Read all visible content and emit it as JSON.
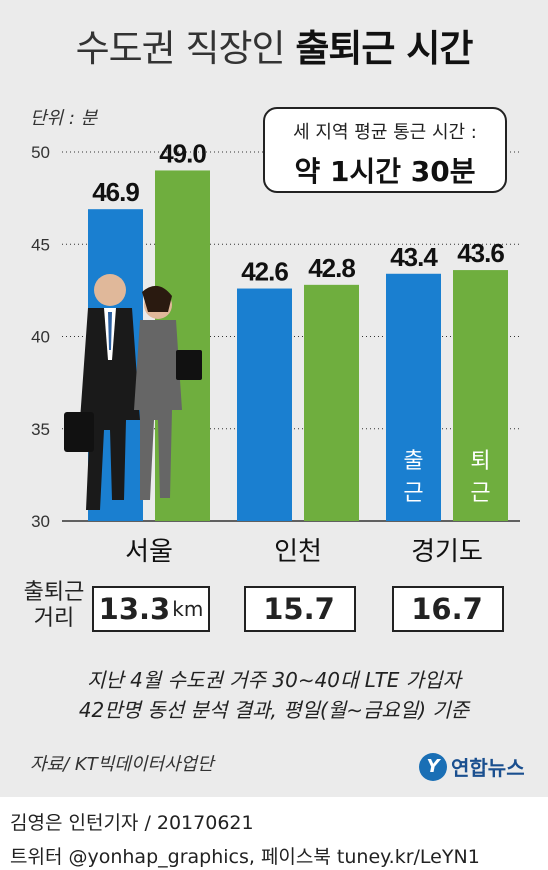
{
  "title": {
    "part1": "수도권 직장인",
    "part2": "출퇴근 시간"
  },
  "unit_label": "단위 : 분",
  "callout": {
    "line1": "세 지역 평균 통근 시간 :",
    "line2": "약 1시간 30분"
  },
  "colors": {
    "commute_in": "#1a7fd0",
    "commute_out": "#6fae3e",
    "panel": "#ebebeb"
  },
  "chart_data": {
    "type": "bar",
    "categories": [
      "서울",
      "인천",
      "경기도"
    ],
    "series": [
      {
        "name": "출근",
        "values": [
          46.9,
          42.6,
          43.4
        ]
      },
      {
        "name": "퇴근",
        "values": [
          49.0,
          42.8,
          43.6
        ]
      }
    ],
    "value_labels": [
      [
        "46.9",
        "42.6",
        "43.4"
      ],
      [
        "49.0",
        "42.8",
        "43.6"
      ]
    ],
    "ylim": [
      30,
      50
    ],
    "yticks": [
      "30",
      "35",
      "40",
      "45",
      "50"
    ],
    "grid": true,
    "legend": "series names printed inside the 경기도 bars"
  },
  "distance": {
    "label": "출퇴근 거리",
    "values": [
      {
        "value": "13.3",
        "unit": "km"
      },
      {
        "value": "15.7",
        "unit": ""
      },
      {
        "value": "16.7",
        "unit": ""
      }
    ]
  },
  "note": {
    "line1": "지난 4월 수도권 거주 30∼40대 LTE 가입자",
    "line2": "42만명 동선 분석 결과, 평일(월∼금요일) 기준"
  },
  "source": "자료/ KT빅데이터사업단",
  "logo": {
    "mark": "Y",
    "name": "연합뉴스"
  },
  "credit": {
    "line1": "김영은 인턴기자 / 20170621",
    "line2": "트위터 @yonhap_graphics, 페이스북 tuney.kr/LeYN1"
  }
}
